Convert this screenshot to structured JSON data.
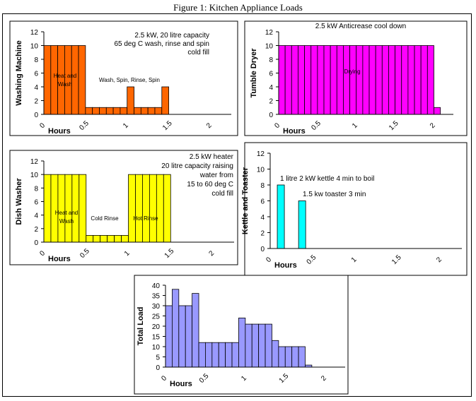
{
  "figure_title": "Figure 1:  Kitchen Appliance Loads",
  "x_axis_title": "Hours",
  "chart_data": [
    {
      "type": "bar",
      "ylabel": "Washing Machine",
      "color": "#ff6600",
      "ylim": [
        0,
        12
      ],
      "yticks": [
        0,
        2,
        4,
        6,
        8,
        10,
        12
      ],
      "xlim": [
        0,
        2.25
      ],
      "xticks": [
        "0",
        "0.5",
        "1",
        "1.5",
        "2"
      ],
      "bin_hours": 0.0833,
      "values": [
        10,
        10,
        10,
        10,
        10,
        10,
        1,
        1,
        1,
        1,
        1,
        1,
        4,
        1,
        1,
        1,
        1,
        4
      ],
      "annotations": [
        {
          "id": "notes",
          "lines": [
            "2.5 kW, 20 litre capacity",
            "65 deg C wash, rinse and spin",
            "cold fill"
          ]
        },
        {
          "id": "heat-wash",
          "lines": [
            "Heat and",
            "Wash"
          ]
        },
        {
          "id": "phases",
          "lines": [
            "Wash,  Spin,  Rinse,  Spin"
          ]
        }
      ]
    },
    {
      "type": "bar",
      "ylabel": "Tumble Dryer",
      "color": "#ff00ff",
      "ylim": [
        0,
        12
      ],
      "yticks": [
        0,
        2,
        4,
        6,
        8,
        10,
        12
      ],
      "xlim": [
        0,
        2.25
      ],
      "xticks": [
        "0",
        "0.5",
        "1",
        "1.5",
        "2"
      ],
      "bin_hours": 0.0833,
      "values": [
        10,
        10,
        10,
        10,
        10,
        10,
        10,
        10,
        10,
        10,
        10,
        10,
        10,
        10,
        10,
        10,
        10,
        10,
        10,
        10,
        10,
        10,
        10,
        10,
        1
      ],
      "annotations": [
        {
          "id": "notes",
          "lines": [
            "2.5 kW Anticrease cool down"
          ]
        },
        {
          "id": "drying",
          "lines": [
            "Drying"
          ]
        }
      ]
    },
    {
      "type": "bar",
      "ylabel": "Dish Washer",
      "color": "#ffff00",
      "ylim": [
        0,
        12
      ],
      "yticks": [
        0,
        2,
        4,
        6,
        8,
        10,
        12
      ],
      "xlim": [
        0,
        2.25
      ],
      "xticks": [
        "0",
        "0.5",
        "1",
        "1.5",
        "2"
      ],
      "bin_hours": 0.0833,
      "values": [
        10,
        10,
        10,
        10,
        10,
        10,
        1,
        1,
        1,
        1,
        1,
        1,
        10,
        10,
        10,
        10,
        10,
        10
      ],
      "annotations": [
        {
          "id": "notes",
          "lines": [
            "2.5 kW heater",
            "20 litre capacity raising",
            "water from",
            "15 to 60 deg C",
            "cold fill"
          ]
        },
        {
          "id": "heat-wash",
          "lines": [
            "Heat and",
            "Wash"
          ]
        },
        {
          "id": "cold-rinse",
          "lines": [
            "Cold Rinse"
          ]
        },
        {
          "id": "hot-rinse",
          "lines": [
            "Hot Rinse"
          ]
        }
      ]
    },
    {
      "type": "bar",
      "ylabel": "Kettle and Toaster",
      "color": "#00ffff",
      "ylim": [
        0,
        12
      ],
      "yticks": [
        0,
        2,
        4,
        6,
        8,
        10,
        12
      ],
      "xlim": [
        0,
        2.25
      ],
      "xticks": [
        "0",
        "0.5",
        "1",
        "1.5",
        "2"
      ],
      "bin_hours": 0.0833,
      "values": [
        0,
        8,
        0,
        0,
        6
      ],
      "annotations": [
        {
          "id": "kettle",
          "lines": [
            "1 litre 2 kW kettle 4 min to boil"
          ]
        },
        {
          "id": "toaster",
          "lines": [
            "1.5 kw toaster 3 min"
          ]
        }
      ]
    },
    {
      "type": "bar",
      "ylabel": "Total Load",
      "color": "#9999ff",
      "ylim": [
        0,
        40
      ],
      "yticks": [
        0,
        5,
        10,
        15,
        20,
        25,
        30,
        35,
        40
      ],
      "xlim": [
        0,
        2.25
      ],
      "xticks": [
        "0",
        "0.5",
        "1",
        "1.5",
        "2"
      ],
      "bin_hours": 0.0833,
      "values": [
        30,
        38,
        30,
        30,
        36,
        12,
        12,
        12,
        12,
        12,
        12,
        24,
        21,
        21,
        21,
        21,
        13,
        10,
        10,
        10,
        10,
        1
      ],
      "annotations": []
    }
  ]
}
